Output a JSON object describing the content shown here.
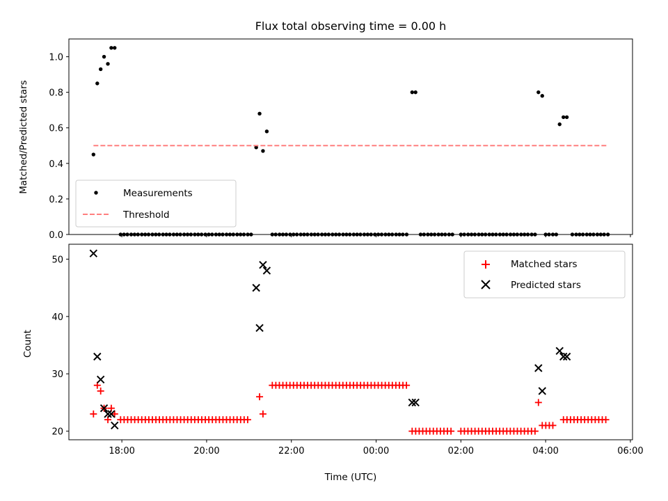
{
  "chart_data": [
    {
      "type": "scatter",
      "title": "Flux total observing time = 0.00 h",
      "xlabel": "",
      "ylabel": "Matched/Predicted stars",
      "xlim": [
        16.75,
        30.05
      ],
      "ylim": [
        0,
        1.1
      ],
      "yticks": [
        0.0,
        0.2,
        0.4,
        0.6,
        0.8,
        1.0
      ],
      "ytick_labels": [
        "0.0",
        "0.2",
        "0.4",
        "0.6",
        "0.8",
        "1.0"
      ],
      "grid": false,
      "legend_position": "lower-left",
      "series": [
        {
          "name": "Measurements",
          "marker": "dot",
          "color": "#000000",
          "points": [
            [
              17.33,
              0.45
            ],
            [
              17.42,
              0.85
            ],
            [
              17.5,
              0.93
            ],
            [
              17.58,
              1.0
            ],
            [
              17.67,
              0.96
            ],
            [
              17.75,
              1.05
            ],
            [
              17.83,
              1.05
            ],
            [
              17.97,
              0.0
            ],
            [
              18.05,
              0.0
            ],
            [
              18.13,
              0.0
            ],
            [
              18.22,
              0.0
            ],
            [
              18.3,
              0.0
            ],
            [
              18.38,
              0.0
            ],
            [
              18.47,
              0.0
            ],
            [
              18.55,
              0.0
            ],
            [
              18.63,
              0.0
            ],
            [
              18.72,
              0.0
            ],
            [
              18.8,
              0.0
            ],
            [
              18.88,
              0.0
            ],
            [
              18.97,
              0.0
            ],
            [
              19.05,
              0.0
            ],
            [
              19.13,
              0.0
            ],
            [
              19.22,
              0.0
            ],
            [
              19.3,
              0.0
            ],
            [
              19.38,
              0.0
            ],
            [
              19.47,
              0.0
            ],
            [
              19.55,
              0.0
            ],
            [
              19.63,
              0.0
            ],
            [
              19.72,
              0.0
            ],
            [
              19.8,
              0.0
            ],
            [
              19.88,
              0.0
            ],
            [
              19.97,
              0.0
            ],
            [
              20.05,
              0.0
            ],
            [
              20.13,
              0.0
            ],
            [
              20.22,
              0.0
            ],
            [
              20.3,
              0.0
            ],
            [
              20.38,
              0.0
            ],
            [
              20.47,
              0.0
            ],
            [
              20.55,
              0.0
            ],
            [
              20.63,
              0.0
            ],
            [
              20.72,
              0.0
            ],
            [
              20.8,
              0.0
            ],
            [
              20.88,
              0.0
            ],
            [
              20.97,
              0.0
            ],
            [
              21.05,
              0.0
            ],
            [
              21.17,
              0.49
            ],
            [
              21.25,
              0.68
            ],
            [
              21.33,
              0.47
            ],
            [
              21.42,
              0.58
            ],
            [
              21.55,
              0.0
            ],
            [
              21.63,
              0.0
            ],
            [
              21.72,
              0.0
            ],
            [
              21.8,
              0.0
            ],
            [
              21.88,
              0.0
            ],
            [
              21.97,
              0.0
            ],
            [
              22.05,
              0.0
            ],
            [
              22.13,
              0.0
            ],
            [
              22.22,
              0.0
            ],
            [
              22.3,
              0.0
            ],
            [
              22.38,
              0.0
            ],
            [
              22.47,
              0.0
            ],
            [
              22.55,
              0.0
            ],
            [
              22.63,
              0.0
            ],
            [
              22.72,
              0.0
            ],
            [
              22.8,
              0.0
            ],
            [
              22.88,
              0.0
            ],
            [
              22.97,
              0.0
            ],
            [
              23.05,
              0.0
            ],
            [
              23.13,
              0.0
            ],
            [
              23.22,
              0.0
            ],
            [
              23.3,
              0.0
            ],
            [
              23.38,
              0.0
            ],
            [
              23.47,
              0.0
            ],
            [
              23.55,
              0.0
            ],
            [
              23.63,
              0.0
            ],
            [
              23.72,
              0.0
            ],
            [
              23.8,
              0.0
            ],
            [
              23.88,
              0.0
            ],
            [
              23.97,
              0.0
            ],
            [
              24.05,
              0.0
            ],
            [
              24.13,
              0.0
            ],
            [
              24.22,
              0.0
            ],
            [
              24.3,
              0.0
            ],
            [
              24.38,
              0.0
            ],
            [
              24.47,
              0.0
            ],
            [
              24.55,
              0.0
            ],
            [
              24.63,
              0.0
            ],
            [
              24.72,
              0.0
            ],
            [
              24.85,
              0.8
            ],
            [
              24.93,
              0.8
            ],
            [
              25.05,
              0.0
            ],
            [
              25.13,
              0.0
            ],
            [
              25.22,
              0.0
            ],
            [
              25.3,
              0.0
            ],
            [
              25.38,
              0.0
            ],
            [
              25.47,
              0.0
            ],
            [
              25.55,
              0.0
            ],
            [
              25.63,
              0.0
            ],
            [
              25.72,
              0.0
            ],
            [
              25.8,
              0.0
            ],
            [
              26.0,
              0.0
            ],
            [
              26.08,
              0.0
            ],
            [
              26.17,
              0.0
            ],
            [
              26.25,
              0.0
            ],
            [
              26.33,
              0.0
            ],
            [
              26.42,
              0.0
            ],
            [
              26.5,
              0.0
            ],
            [
              26.58,
              0.0
            ],
            [
              26.67,
              0.0
            ],
            [
              26.75,
              0.0
            ],
            [
              26.83,
              0.0
            ],
            [
              26.92,
              0.0
            ],
            [
              27.0,
              0.0
            ],
            [
              27.08,
              0.0
            ],
            [
              27.17,
              0.0
            ],
            [
              27.25,
              0.0
            ],
            [
              27.33,
              0.0
            ],
            [
              27.42,
              0.0
            ],
            [
              27.5,
              0.0
            ],
            [
              27.58,
              0.0
            ],
            [
              27.67,
              0.0
            ],
            [
              27.75,
              0.0
            ],
            [
              27.83,
              0.8
            ],
            [
              27.92,
              0.78
            ],
            [
              28.0,
              0.0
            ],
            [
              28.08,
              0.0
            ],
            [
              28.17,
              0.0
            ],
            [
              28.25,
              0.0
            ],
            [
              28.33,
              0.62
            ],
            [
              28.42,
              0.66
            ],
            [
              28.5,
              0.66
            ],
            [
              28.63,
              0.0
            ],
            [
              28.72,
              0.0
            ],
            [
              28.8,
              0.0
            ],
            [
              28.88,
              0.0
            ],
            [
              28.97,
              0.0
            ],
            [
              29.05,
              0.0
            ],
            [
              29.13,
              0.0
            ],
            [
              29.22,
              0.0
            ],
            [
              29.3,
              0.0
            ],
            [
              29.38,
              0.0
            ],
            [
              29.47,
              0.0
            ]
          ]
        },
        {
          "name": "Threshold",
          "marker": "dashed-line",
          "color": "#ff7f7f",
          "points": [
            [
              17.33,
              0.5
            ],
            [
              29.47,
              0.5
            ]
          ]
        }
      ]
    },
    {
      "type": "scatter",
      "title": "",
      "xlabel": "Time (UTC)",
      "ylabel": "Count",
      "xlim": [
        16.75,
        30.05
      ],
      "ylim": [
        18.5,
        52.6
      ],
      "yticks": [
        20,
        30,
        40,
        50
      ],
      "ytick_labels": [
        "20",
        "30",
        "40",
        "50"
      ],
      "xticks": [
        18,
        20,
        22,
        24,
        26,
        28,
        30
      ],
      "xtick_labels": [
        "18:00",
        "20:00",
        "22:00",
        "00:00",
        "02:00",
        "04:00",
        "06:00"
      ],
      "grid": false,
      "legend_position": "upper-right",
      "series": [
        {
          "name": "Matched stars",
          "marker": "plus",
          "color": "#ff0000",
          "runs": [
            {
              "from": 17.97,
              "to": 21.05,
              "step": 0.0833,
              "value": 22
            },
            {
              "from": 21.55,
              "to": 24.72,
              "step": 0.0833,
              "value": 28
            },
            {
              "from": 24.85,
              "to": 25.8,
              "step": 0.0833,
              "value": 20
            },
            {
              "from": 26.0,
              "to": 27.75,
              "step": 0.0833,
              "value": 20
            },
            {
              "from": 27.92,
              "to": 28.25,
              "step": 0.0833,
              "value": 21
            },
            {
              "from": 28.42,
              "to": 29.47,
              "step": 0.0833,
              "value": 22
            }
          ],
          "points": [
            [
              17.33,
              23
            ],
            [
              17.42,
              28
            ],
            [
              17.5,
              27
            ],
            [
              17.58,
              24
            ],
            [
              17.67,
              22
            ],
            [
              17.75,
              24
            ],
            [
              17.83,
              23
            ],
            [
              21.25,
              26
            ],
            [
              21.33,
              23
            ],
            [
              27.83,
              25
            ]
          ]
        },
        {
          "name": "Predicted stars",
          "marker": "x",
          "color": "#000000",
          "points": [
            [
              17.33,
              51
            ],
            [
              17.42,
              33
            ],
            [
              17.5,
              29
            ],
            [
              17.58,
              24
            ],
            [
              17.67,
              23
            ],
            [
              17.75,
              23
            ],
            [
              17.83,
              21
            ],
            [
              21.17,
              45
            ],
            [
              21.25,
              38
            ],
            [
              21.33,
              49
            ],
            [
              21.42,
              48
            ],
            [
              24.85,
              25
            ],
            [
              24.93,
              25
            ],
            [
              27.83,
              31
            ],
            [
              27.92,
              27
            ],
            [
              28.33,
              34
            ],
            [
              28.42,
              33
            ],
            [
              28.5,
              33
            ]
          ]
        }
      ]
    }
  ]
}
